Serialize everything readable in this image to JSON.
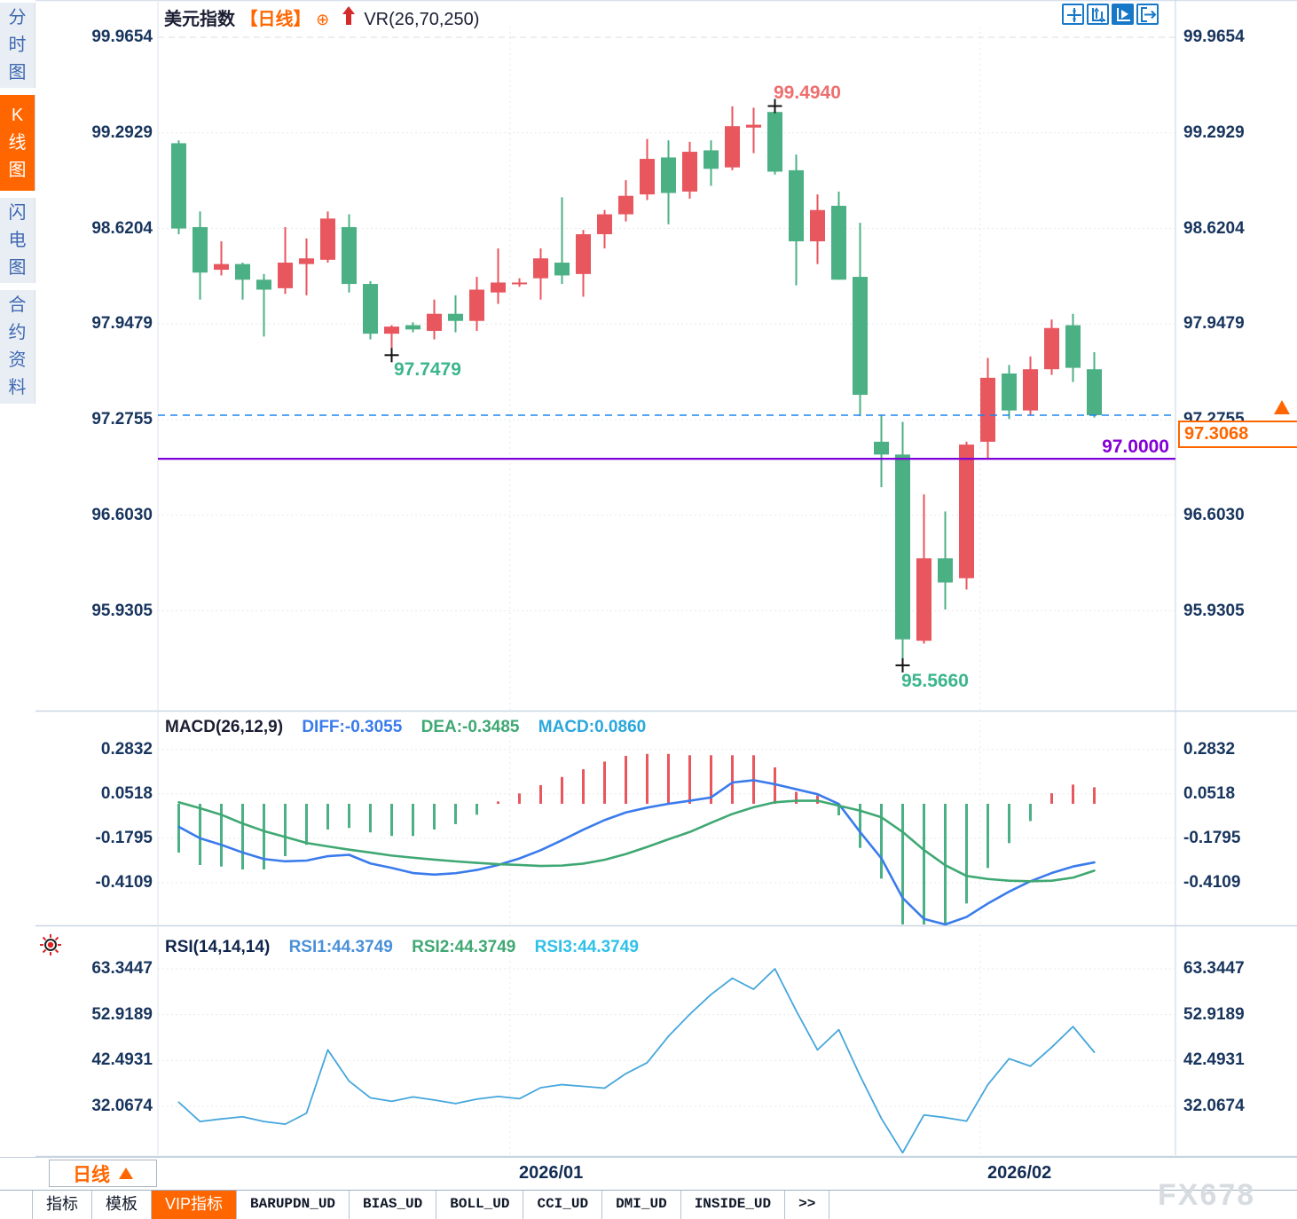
{
  "sidebar": {
    "items": [
      {
        "label": "分时图",
        "active": false
      },
      {
        "label": "K线图",
        "active": true
      },
      {
        "label": "闪电图",
        "active": false
      },
      {
        "label": "合约资料",
        "active": false
      }
    ]
  },
  "header": {
    "symbol": "美元指数",
    "period_tag": "【日线】",
    "plus_icon": "⊕",
    "up_arrow_icon": "red-up-arrow",
    "overlay_indicator": "VR(26,70,250)"
  },
  "toolbar": {
    "icons": [
      {
        "name": "move-crosshair-icon",
        "active": false
      },
      {
        "name": "axis-scale-icon",
        "active": false
      },
      {
        "name": "auto-scroll-icon",
        "active": true
      },
      {
        "name": "jump-to-latest-icon",
        "active": false
      }
    ]
  },
  "price_box": {
    "value": "97.3068"
  },
  "hline_label": "97.0000",
  "annotations": {
    "high": "99.4940",
    "mid_low": "97.7479",
    "low": "95.5660"
  },
  "macd_header": {
    "title": "MACD(26,12,9)",
    "diff": "DIFF:-0.3055",
    "dea": "DEA:-0.3485",
    "macd": "MACD:0.0860"
  },
  "rsi_header": {
    "title": "RSI(14,14,14)",
    "rsi1": "RSI1:44.3749",
    "rsi2": "RSI2:44.3749",
    "rsi3": "RSI3:44.3749"
  },
  "bottom": {
    "period_button": "日线",
    "dates": [
      "2026/01",
      "2026/02"
    ],
    "tabs": [
      {
        "label": "指标",
        "mono": false,
        "active": false
      },
      {
        "label": "模板",
        "mono": false,
        "active": false
      },
      {
        "label": "VIP指标",
        "mono": false,
        "active": true
      },
      {
        "label": "BARUPDN_UD",
        "mono": true,
        "active": false
      },
      {
        "label": "BIAS_UD",
        "mono": true,
        "active": false
      },
      {
        "label": "BOLL_UD",
        "mono": true,
        "active": false
      },
      {
        "label": "CCI_UD",
        "mono": true,
        "active": false
      },
      {
        "label": "DMI_UD",
        "mono": true,
        "active": false
      },
      {
        "label": "INSIDE_UD",
        "mono": true,
        "active": false
      },
      {
        "label": ">>",
        "mono": true,
        "active": false
      }
    ]
  },
  "watermark": "FX678",
  "colors": {
    "up": "#e8565e",
    "down": "#4cb085",
    "diff_line": "#3a7bec",
    "dea_line": "#3fa873",
    "rsi_line": "#45a6dc",
    "hline_purple": "#7d00d8",
    "current_dashed": "#1b86f0",
    "accent_orange": "#ff6600",
    "axis_text": "#18355e",
    "high_label": "#ee6f6f",
    "low_label": "#3bb68c",
    "icon_blue": "#1878c8"
  },
  "chart_data": [
    {
      "type": "candlestick",
      "title": "美元指数 日线 (US Dollar Index, daily)",
      "x_ticks": [
        "2026/01",
        "2026/02"
      ],
      "y_ticks": [
        99.9654,
        99.2929,
        98.6204,
        97.9479,
        97.2755,
        96.603,
        95.9305
      ],
      "ylim": [
        95.75,
        99.97
      ],
      "legend_position": "top-left",
      "grid": true,
      "current_price": 97.3068,
      "support_line": 97.0,
      "high_marker": {
        "index": 28,
        "value": 99.494
      },
      "mid_low_marker": {
        "index": 10,
        "value": 97.7479
      },
      "low_marker": {
        "index": 34,
        "value": 95.566
      },
      "ohlc": [
        [
          99.22,
          99.24,
          98.58,
          98.62
        ],
        [
          98.63,
          98.74,
          98.12,
          98.31
        ],
        [
          98.33,
          98.53,
          98.29,
          98.37
        ],
        [
          98.37,
          98.38,
          98.12,
          98.26
        ],
        [
          98.26,
          98.3,
          97.86,
          98.19
        ],
        [
          98.2,
          98.63,
          98.16,
          98.38
        ],
        [
          98.37,
          98.55,
          98.15,
          98.41
        ],
        [
          98.4,
          98.74,
          98.38,
          98.69
        ],
        [
          98.63,
          98.72,
          98.17,
          98.23
        ],
        [
          98.23,
          98.25,
          97.84,
          97.88
        ],
        [
          97.88,
          97.94,
          97.7479,
          97.93
        ],
        [
          97.94,
          97.96,
          97.89,
          97.91
        ],
        [
          97.9,
          98.12,
          97.84,
          98.02
        ],
        [
          98.02,
          98.15,
          97.89,
          97.97
        ],
        [
          97.97,
          98.28,
          97.9,
          98.19
        ],
        [
          98.17,
          98.48,
          98.09,
          98.24
        ],
        [
          98.23,
          98.27,
          98.21,
          98.24
        ],
        [
          98.27,
          98.48,
          98.12,
          98.41
        ],
        [
          98.38,
          98.84,
          98.23,
          98.29
        ],
        [
          98.3,
          98.61,
          98.14,
          98.58
        ],
        [
          98.58,
          98.75,
          98.48,
          98.72
        ],
        [
          98.72,
          98.96,
          98.67,
          98.85
        ],
        [
          98.86,
          99.25,
          98.82,
          99.11
        ],
        [
          99.12,
          99.24,
          98.65,
          98.87
        ],
        [
          98.88,
          99.23,
          98.83,
          99.16
        ],
        [
          99.17,
          99.24,
          98.92,
          99.04
        ],
        [
          99.05,
          99.48,
          99.03,
          99.34
        ],
        [
          99.33,
          99.47,
          99.15,
          99.35
        ],
        [
          99.44,
          99.494,
          99.0,
          99.02
        ],
        [
          99.03,
          99.14,
          98.22,
          98.53
        ],
        [
          98.53,
          98.86,
          98.37,
          98.75
        ],
        [
          98.78,
          98.88,
          98.26,
          98.26
        ],
        [
          98.28,
          98.66,
          97.3,
          97.45
        ],
        [
          97.12,
          97.31,
          96.8,
          97.03
        ],
        [
          97.03,
          97.26,
          95.566,
          95.73
        ],
        [
          95.72,
          96.75,
          95.7,
          96.3
        ],
        [
          96.3,
          96.63,
          95.94,
          96.13
        ],
        [
          96.16,
          97.12,
          96.08,
          97.1
        ],
        [
          97.12,
          97.71,
          97.0,
          97.57
        ],
        [
          97.6,
          97.66,
          97.28,
          97.34
        ],
        [
          97.34,
          97.72,
          97.31,
          97.63
        ],
        [
          97.63,
          97.98,
          97.59,
          97.92
        ],
        [
          97.94,
          98.02,
          97.54,
          97.64
        ],
        [
          97.63,
          97.75,
          97.29,
          97.3068
        ]
      ]
    },
    {
      "type": "bar",
      "title": "MACD(26,12,9)",
      "y_ticks": [
        0.2832,
        0.0518,
        -0.1795,
        -0.4109
      ],
      "series": [
        {
          "name": "MACD-histogram",
          "values": [
            -0.254,
            -0.319,
            -0.327,
            -0.342,
            -0.342,
            -0.273,
            -0.214,
            -0.134,
            -0.126,
            -0.149,
            -0.168,
            -0.168,
            -0.134,
            -0.106,
            -0.057,
            0.012,
            0.054,
            0.097,
            0.14,
            0.18,
            0.22,
            0.25,
            0.26,
            0.26,
            0.253,
            0.253,
            0.253,
            0.253,
            0.19,
            0.062,
            0.043,
            -0.06,
            -0.23,
            -0.39,
            -0.63,
            -0.68,
            -0.67,
            -0.52,
            -0.335,
            -0.205,
            -0.09,
            0.055,
            0.1,
            0.086
          ]
        },
        {
          "name": "DIFF",
          "values": [
            -0.12,
            -0.18,
            -0.214,
            -0.254,
            -0.288,
            -0.3,
            -0.296,
            -0.273,
            -0.266,
            -0.311,
            -0.334,
            -0.361,
            -0.369,
            -0.362,
            -0.345,
            -0.319,
            -0.285,
            -0.242,
            -0.19,
            -0.135,
            -0.085,
            -0.045,
            -0.02,
            0.0,
            0.016,
            0.033,
            0.111,
            0.123,
            0.102,
            0.076,
            0.05,
            -0.001,
            -0.147,
            -0.284,
            -0.491,
            -0.6,
            -0.63,
            -0.59,
            -0.52,
            -0.458,
            -0.404,
            -0.361,
            -0.327,
            -0.3055
          ]
        },
        {
          "name": "DEA",
          "values": [
            0.008,
            -0.023,
            -0.057,
            -0.103,
            -0.142,
            -0.173,
            -0.204,
            -0.222,
            -0.239,
            -0.254,
            -0.27,
            -0.281,
            -0.291,
            -0.3,
            -0.308,
            -0.315,
            -0.319,
            -0.324,
            -0.322,
            -0.312,
            -0.292,
            -0.262,
            -0.225,
            -0.185,
            -0.147,
            -0.099,
            -0.053,
            -0.018,
            0.008,
            0.016,
            0.016,
            -0.01,
            -0.036,
            -0.07,
            -0.147,
            -0.241,
            -0.32,
            -0.376,
            -0.392,
            -0.401,
            -0.404,
            -0.401,
            -0.385,
            -0.3485
          ]
        }
      ]
    },
    {
      "type": "line",
      "title": "RSI(14,14,14)",
      "y_ticks": [
        63.3447,
        52.9189,
        42.4931,
        32.0674
      ],
      "series": [
        {
          "name": "RSI1",
          "values": [
            33.0,
            28.6,
            29.2,
            29.7,
            28.6,
            28.0,
            30.5,
            44.9,
            37.8,
            34.0,
            33.2,
            34.2,
            33.5,
            32.7,
            33.7,
            34.3,
            33.8,
            36.3,
            37.0,
            36.6,
            36.2,
            39.5,
            42.0,
            48.0,
            53.0,
            57.5,
            61.2,
            58.7,
            63.3447,
            53.8,
            44.9,
            49.5,
            39.0,
            29.3,
            21.5,
            30.1,
            29.5,
            28.7,
            37.0,
            42.9,
            41.2,
            45.5,
            50.2,
            44.3749
          ]
        }
      ]
    }
  ]
}
